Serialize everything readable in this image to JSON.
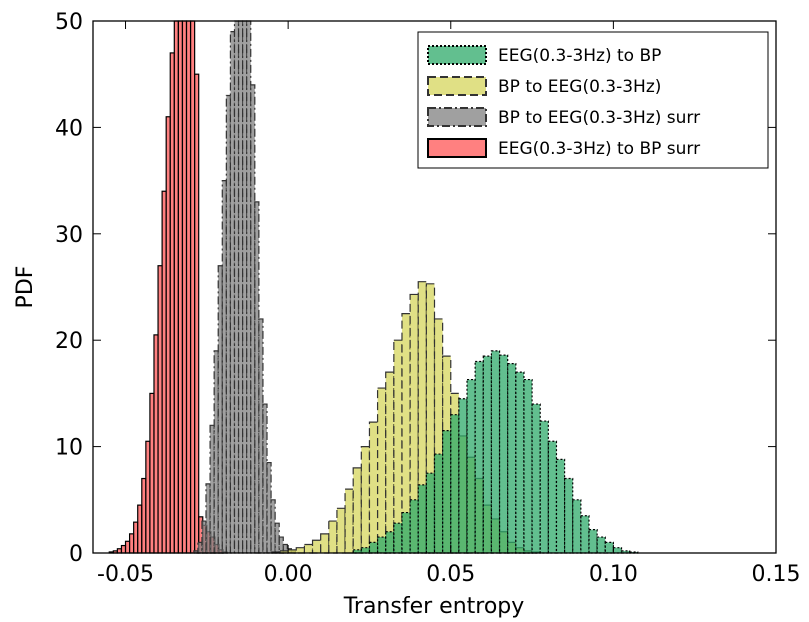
{
  "chart_data": {
    "type": "histogram",
    "title": "",
    "xlabel": "Transfer entropy",
    "ylabel": "PDF",
    "xlim": [
      -0.06,
      0.15
    ],
    "ylim": [
      0,
      50
    ],
    "xticks": [
      "-0.05",
      "0.00",
      "0.05",
      "0.10",
      "0.15"
    ],
    "yticks": [
      "0",
      "10",
      "20",
      "30",
      "40",
      "50"
    ],
    "grid": false,
    "legend_position": "top-right",
    "series": [
      {
        "name": "EEG(0.3-3Hz) to BP surr",
        "color": "#ff5555",
        "edge": "#000000",
        "linestyle": "solid",
        "bin_width": 0.00125,
        "start": -0.055,
        "values": [
          0.1,
          0.2,
          0.4,
          0.7,
          1.1,
          1.8,
          2.9,
          4.5,
          7.0,
          10.5,
          15.0,
          20.5,
          27.0,
          34.0,
          41.0,
          47.0,
          50.0,
          50.0,
          50.0,
          50.0,
          50.0,
          45.0,
          3.4,
          2.6,
          2.0,
          1.5,
          0.8,
          0.3,
          0.1
        ]
      },
      {
        "name": "BP to EEG(0.3-3Hz) surr",
        "color": "#808080",
        "edge": "#333333",
        "linestyle": "dashdot",
        "bin_width": 0.00125,
        "start": -0.029,
        "values": [
          0.2,
          1.0,
          3.0,
          6.5,
          12.0,
          19.0,
          27.0,
          35.0,
          43.0,
          49.0,
          50.0,
          50.0,
          50.0,
          50.0,
          44.0,
          33.0,
          22.0,
          14.0,
          8.5,
          5.0,
          2.8,
          1.5,
          0.8,
          0.4,
          0.2
        ]
      },
      {
        "name": "BP to EEG(0.3-3Hz)",
        "color": "#d6d65c",
        "edge": "#333333",
        "linestyle": "dashed",
        "bin_width": 0.0025,
        "start": -0.005,
        "values": [
          0.1,
          0.2,
          0.3,
          0.5,
          0.8,
          1.2,
          1.8,
          3.0,
          4.2,
          6.0,
          8.0,
          10.0,
          12.3,
          15.5,
          17.0,
          20.0,
          22.5,
          24.3,
          25.5,
          25.3,
          22.0,
          18.5,
          15.0,
          11.0,
          9.0,
          7.0,
          4.5,
          3.2,
          2.0,
          1.0,
          0.5,
          0.2,
          0.1
        ]
      },
      {
        "name": "EEG(0.3-3Hz) to BP",
        "color": "#2eaa6a",
        "edge": "#000000",
        "linestyle": "dotted",
        "bin_width": 0.0025,
        "start": 0.02,
        "values": [
          0.3,
          0.5,
          1.0,
          1.5,
          2.0,
          2.8,
          3.8,
          5.0,
          6.4,
          7.5,
          9.3,
          11.5,
          13.0,
          14.5,
          16.3,
          18.0,
          18.5,
          19.0,
          18.6,
          17.8,
          17.0,
          16.3,
          14.0,
          12.4,
          10.5,
          8.8,
          7.0,
          5.0,
          3.5,
          2.2,
          1.5,
          1.0,
          0.5,
          0.2,
          0.1
        ]
      }
    ],
    "legend_order": [
      "EEG(0.3-3Hz) to BP",
      "BP to EEG(0.3-3Hz)",
      "BP to EEG(0.3-3Hz) surr",
      "EEG(0.3-3Hz) to BP surr"
    ]
  }
}
